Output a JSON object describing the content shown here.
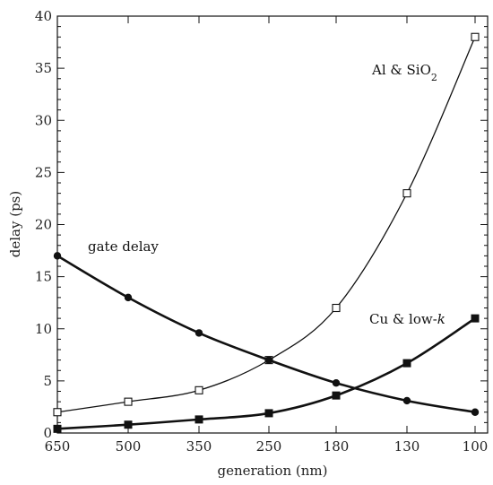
{
  "chart_data": {
    "type": "line",
    "xlabel": "generation (nm)",
    "ylabel": "delay (ps)",
    "categories": [
      "650",
      "500",
      "350",
      "250",
      "180",
      "130",
      "100"
    ],
    "ylim": [
      0,
      40
    ],
    "yticks": [
      0,
      5,
      10,
      15,
      20,
      25,
      30,
      35,
      40
    ],
    "grid": false,
    "legend": "none",
    "series": [
      {
        "name": "Al & SiO2",
        "marker": "open-square",
        "line": "thin",
        "values": [
          2.0,
          3.0,
          4.1,
          7.0,
          12.0,
          23.0,
          38.0
        ]
      },
      {
        "name": "Cu & low-k",
        "marker": "filled-square",
        "line": "thick",
        "values": [
          0.4,
          0.8,
          1.3,
          1.9,
          3.6,
          6.7,
          11.0
        ]
      },
      {
        "name": "gate delay",
        "marker": "filled-circle",
        "line": "thick",
        "values": [
          17.0,
          13.0,
          9.6,
          7.0,
          4.8,
          3.1,
          2.0
        ]
      }
    ],
    "annotations": {
      "al_sio2": {
        "main": "Al & SiO",
        "sub": "2"
      },
      "cu_lowk": {
        "main": "Cu & low-",
        "italic": "k"
      },
      "gate_delay": "gate delay"
    }
  }
}
